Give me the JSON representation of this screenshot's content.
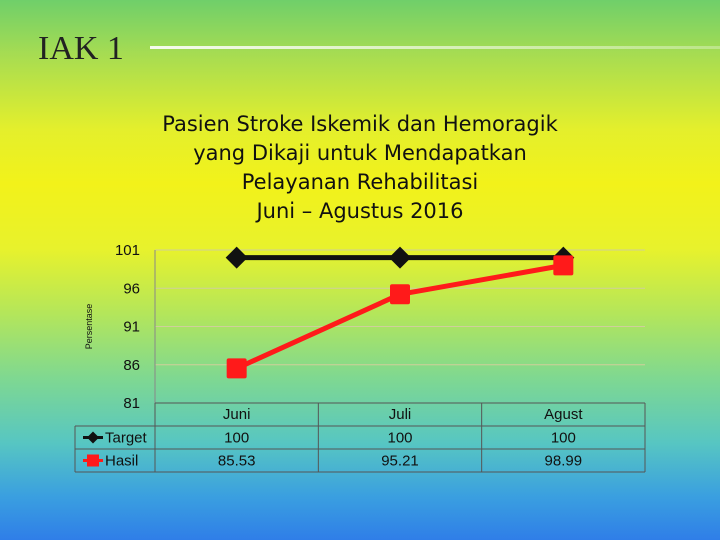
{
  "slide": {
    "title": "IAK 1"
  },
  "chart_data": {
    "type": "line",
    "title_lines": [
      "Pasien Stroke Iskemik dan Hemoragik",
      "yang Dikaji untuk Mendapatkan",
      "Pelayanan Rehabilitasi",
      "Juni – Agustus  2016"
    ],
    "ylabel": "Persentase",
    "xlabel": "",
    "categories": [
      "Juni",
      "Juli",
      "Agust"
    ],
    "series": [
      {
        "name": "Target",
        "values": [
          100,
          100,
          100
        ],
        "color": "#111111",
        "marker": "diamond"
      },
      {
        "name": "Hasil",
        "values": [
          85.53,
          95.21,
          98.99
        ],
        "color": "#ff1a1a",
        "marker": "square"
      }
    ],
    "table_values": [
      [
        "100",
        "100",
        "100"
      ],
      [
        "85.53",
        "95.21",
        "98.99"
      ]
    ],
    "yticks": [
      81,
      86,
      91,
      96,
      101
    ],
    "ylim": [
      81,
      101
    ],
    "grid": true,
    "legend": "data-table"
  }
}
